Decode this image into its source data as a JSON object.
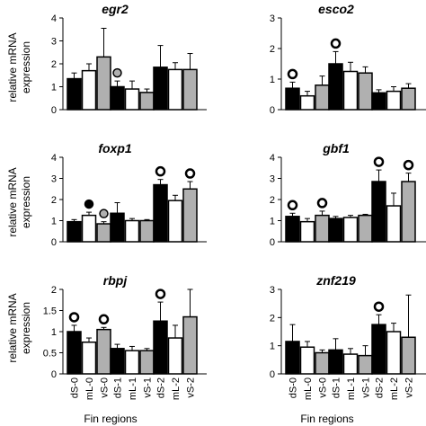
{
  "y_axis_label": [
    "relative mRNA",
    "expression"
  ],
  "x_axis_title": "Fin regions",
  "colors": {
    "black": "#000000",
    "white": "#ffffff",
    "gray": "#b0b0b0",
    "axis": "#000000"
  },
  "chart_data": [
    {
      "type": "bar",
      "title": "egr2",
      "categories": [
        "dS-0",
        "mL-0",
        "vS-0",
        "dS-1",
        "mL-1",
        "vS-1",
        "dS-2",
        "mL-2",
        "vS-2"
      ],
      "values": [
        1.35,
        1.7,
        2.3,
        1.0,
        0.9,
        0.75,
        1.85,
        1.75,
        1.75
      ],
      "errors": [
        0.25,
        0.3,
        1.25,
        0.25,
        0.35,
        0.15,
        0.95,
        0.3,
        0.7
      ],
      "markers": [
        null,
        null,
        null,
        "gray-dot",
        null,
        null,
        null,
        null,
        null
      ],
      "ylim": [
        0,
        4
      ],
      "yticks": [
        0,
        1,
        2,
        3,
        4
      ],
      "ylabel": "relative mRNA expression",
      "xlabel": ""
    },
    {
      "type": "bar",
      "title": "esco2",
      "categories": [
        "dS-0",
        "mL-0",
        "vS-0",
        "dS-1",
        "mL-1",
        "vS-1",
        "dS-2",
        "mL-2",
        "vS-2"
      ],
      "values": [
        0.7,
        0.45,
        0.8,
        1.5,
        1.25,
        1.2,
        0.55,
        0.6,
        0.7
      ],
      "errors": [
        0.2,
        0.15,
        0.3,
        0.4,
        0.3,
        0.2,
        0.1,
        0.15,
        0.15
      ],
      "markers": [
        "open-circle",
        null,
        null,
        "open-circle",
        null,
        null,
        null,
        null,
        null
      ],
      "ylim": [
        0,
        3
      ],
      "yticks": [
        0,
        1,
        2,
        3
      ],
      "ylabel": "",
      "xlabel": ""
    },
    {
      "type": "bar",
      "title": "foxp1",
      "categories": [
        "dS-0",
        "mL-0",
        "vS-0",
        "dS-1",
        "mL-1",
        "vS-1",
        "dS-2",
        "mL-2",
        "vS-2"
      ],
      "values": [
        0.95,
        1.25,
        0.85,
        1.35,
        1.0,
        1.0,
        2.7,
        1.95,
        2.5
      ],
      "errors": [
        0.1,
        0.15,
        0.1,
        0.5,
        0.1,
        0.05,
        0.25,
        0.25,
        0.35
      ],
      "markers": [
        null,
        "black-dot",
        "gray-dot",
        null,
        null,
        null,
        "open-circle",
        null,
        "open-circle"
      ],
      "ylim": [
        0,
        4
      ],
      "yticks": [
        0,
        1,
        2,
        3,
        4
      ],
      "ylabel": "relative mRNA expression",
      "xlabel": ""
    },
    {
      "type": "bar",
      "title": "gbf1",
      "categories": [
        "dS-0",
        "mL-0",
        "vS-0",
        "dS-1",
        "mL-1",
        "vS-1",
        "dS-2",
        "mL-2",
        "vS-2"
      ],
      "values": [
        1.2,
        0.95,
        1.25,
        1.1,
        1.15,
        1.25,
        2.85,
        1.7,
        2.85
      ],
      "errors": [
        0.15,
        0.15,
        0.2,
        0.1,
        0.1,
        0.05,
        0.55,
        0.6,
        0.4
      ],
      "markers": [
        "open-circle",
        null,
        "open-circle",
        null,
        null,
        null,
        "open-circle",
        null,
        "open-circle"
      ],
      "ylim": [
        0,
        4
      ],
      "yticks": [
        0,
        1,
        2,
        3,
        4
      ],
      "ylabel": "",
      "xlabel": ""
    },
    {
      "type": "bar",
      "title": "rbpj",
      "categories": [
        "dS-0",
        "mL-0",
        "vS-0",
        "dS-1",
        "mL-1",
        "vS-1",
        "dS-2",
        "mL-2",
        "vS-2"
      ],
      "values": [
        1.0,
        0.75,
        1.05,
        0.6,
        0.55,
        0.55,
        1.25,
        0.85,
        1.35
      ],
      "errors": [
        0.15,
        0.1,
        0.05,
        0.1,
        0.1,
        0.05,
        0.45,
        0.3,
        0.65
      ],
      "markers": [
        "open-circle",
        null,
        "open-circle",
        null,
        null,
        null,
        "open-circle",
        null,
        null
      ],
      "ylim": [
        0,
        2
      ],
      "yticks": [
        0,
        0.5,
        1,
        1.5,
        2
      ],
      "ylabel": "relative mRNA expression",
      "xlabel": "Fin regions"
    },
    {
      "type": "bar",
      "title": "znf219",
      "categories": [
        "dS-0",
        "mL-0",
        "vS-0",
        "dS-1",
        "mL-1",
        "vS-1",
        "dS-2",
        "mL-2",
        "vS-2"
      ],
      "values": [
        1.15,
        0.95,
        0.75,
        0.85,
        0.7,
        0.65,
        1.75,
        1.5,
        1.3
      ],
      "errors": [
        0.6,
        0.2,
        0.1,
        0.4,
        0.2,
        0.35,
        0.35,
        0.3,
        1.5
      ],
      "markers": [
        null,
        null,
        null,
        null,
        null,
        null,
        "open-circle",
        null,
        null
      ],
      "ylim": [
        0,
        3
      ],
      "yticks": [
        0,
        1,
        2,
        3
      ],
      "ylabel": "",
      "xlabel": "Fin regions"
    }
  ]
}
